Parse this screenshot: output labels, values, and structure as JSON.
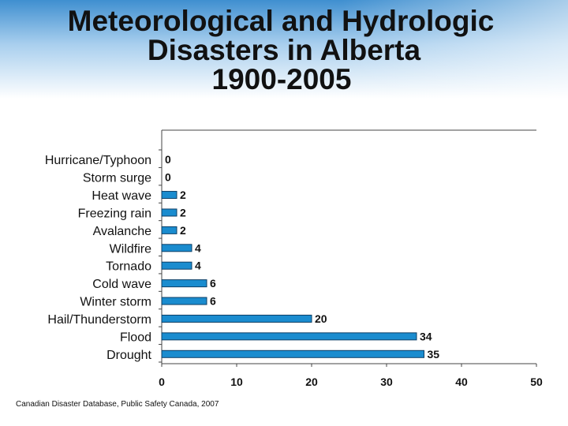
{
  "header": {
    "title_line1": "Meteorological and Hydrologic",
    "title_line2": "Disasters in Alberta",
    "title_line3": "1900-2005"
  },
  "source": "Canadian Disaster Database, Public Safety Canada, 2007",
  "colors": {
    "bar": "#1a8ccf",
    "bar_outline": "#0d3f66",
    "axis": "#444444",
    "text": "#111111"
  },
  "chart_data": {
    "type": "bar",
    "orientation": "horizontal",
    "title": "Meteorological and Hydrologic Disasters in Alberta 1900-2005",
    "xlabel": "",
    "ylabel": "",
    "categories": [
      "Hurricane/Typhoon",
      "Storm surge",
      "Heat wave",
      "Freezing rain",
      "Avalanche",
      "Wildfire",
      "Tornado",
      "Cold wave",
      "Winter storm",
      "Hail/Thunderstorm",
      "Flood",
      "Drought"
    ],
    "values": [
      0,
      0,
      2,
      2,
      2,
      4,
      4,
      6,
      6,
      20,
      34,
      35
    ],
    "xlim": [
      0,
      50
    ],
    "xticks": [
      0,
      10,
      20,
      30,
      40,
      50
    ],
    "grid": false,
    "data_labels": true
  }
}
